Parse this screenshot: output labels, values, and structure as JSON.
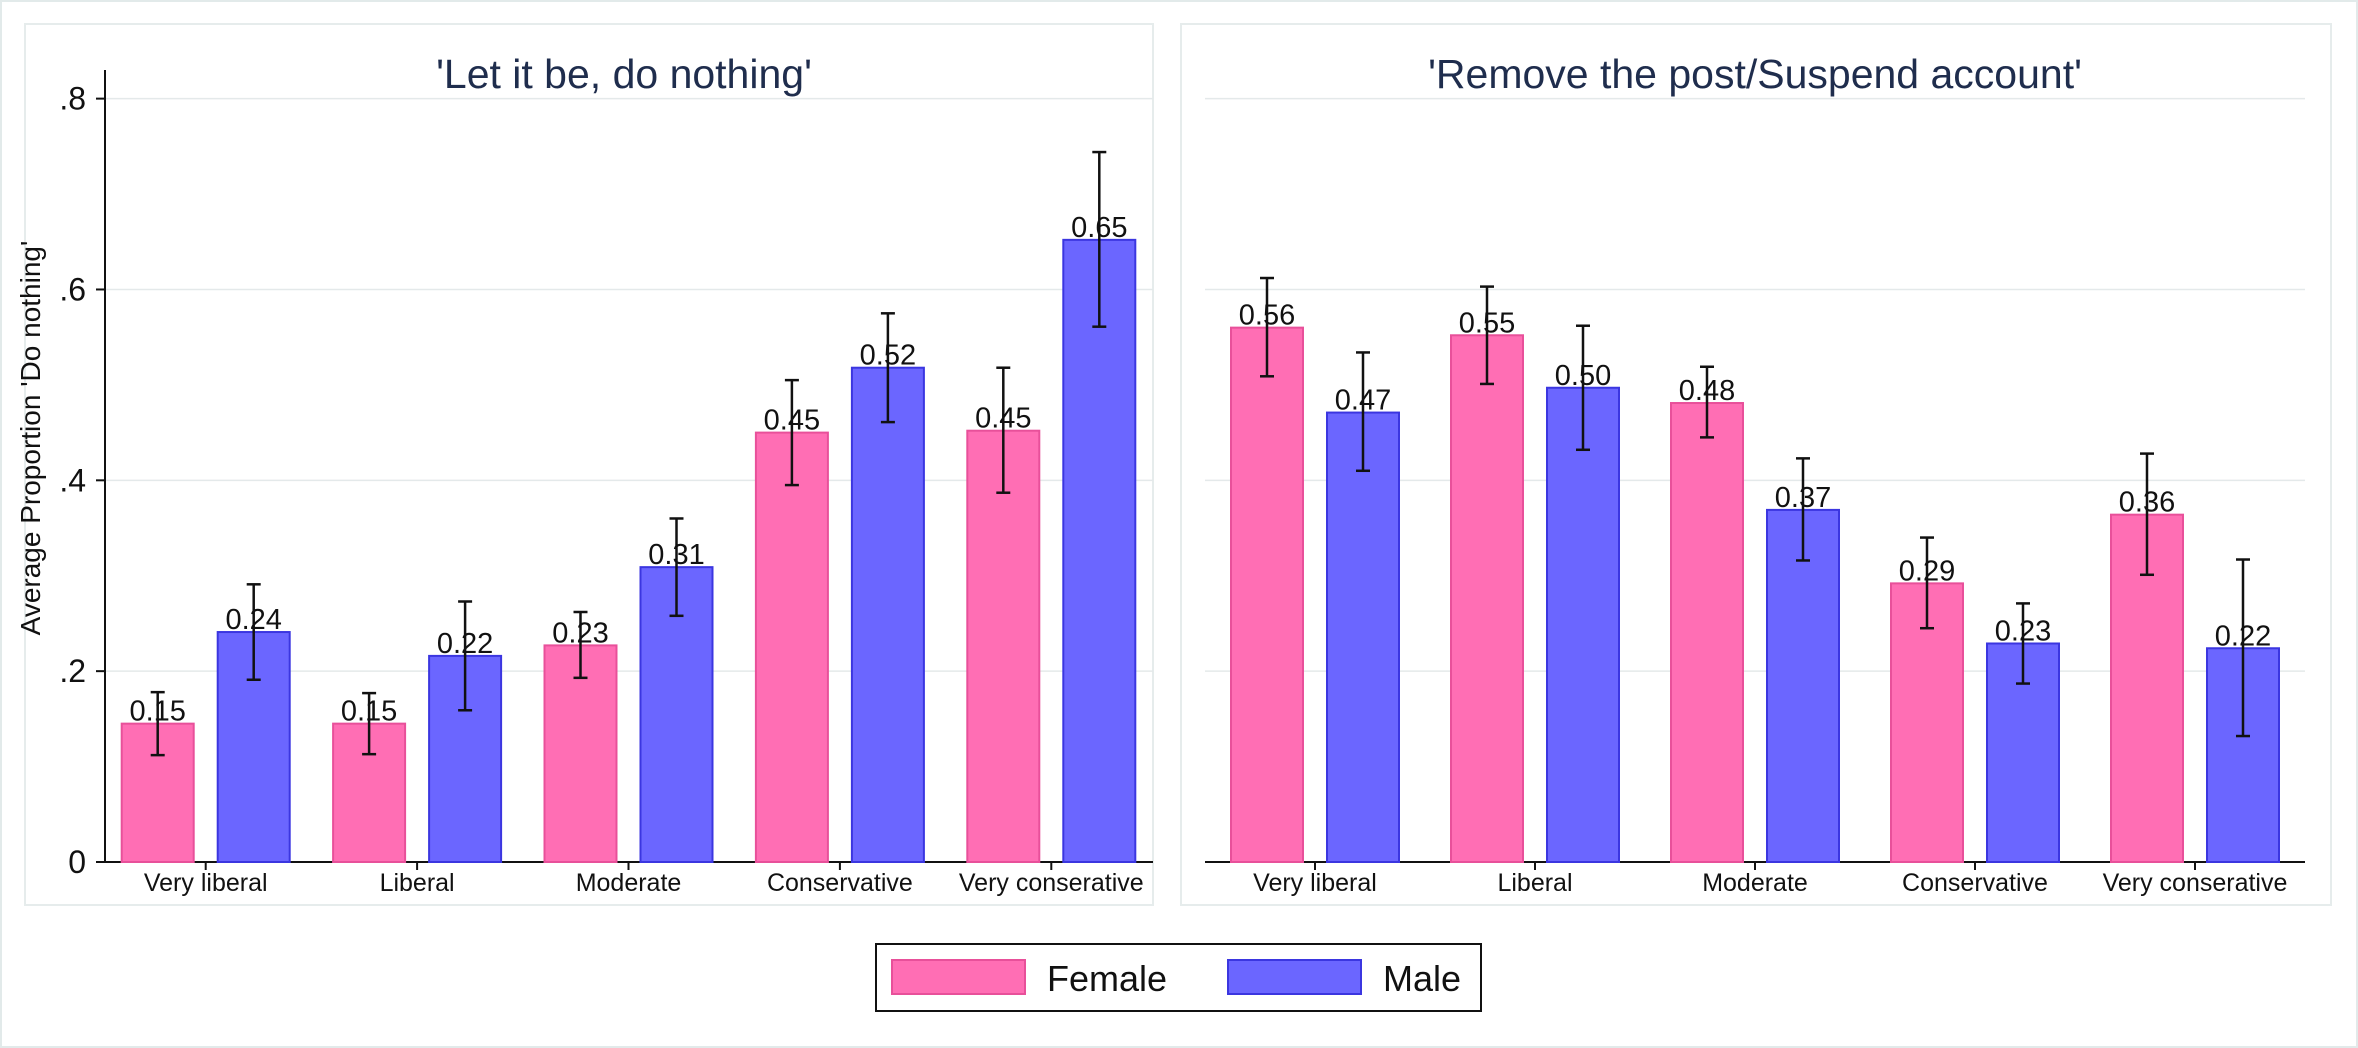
{
  "chart_data": {
    "type": "bar",
    "ylabel": "Average Proportion 'Do nothing'",
    "ylim": [
      0,
      0.83
    ],
    "yticks": [
      0,
      0.2,
      0.4,
      0.6,
      0.8
    ],
    "ytick_labels": [
      "0",
      ".2",
      ".4",
      ".6",
      ".8"
    ],
    "grid": true,
    "legend_position": "bottom",
    "categories": [
      "Very liberal",
      "Liberal",
      "Moderate",
      "Conservative",
      "Very conserative"
    ],
    "series_colors": {
      "Female": "#ff6eb4",
      "Male": "#6b66ff"
    },
    "series_edge_colors": {
      "Female": "#e8509a",
      "Male": "#3b36e0"
    },
    "panels": [
      {
        "title": "'Let it be, do nothing'",
        "series": [
          {
            "name": "Female",
            "values": [
              0.145,
              0.145,
              0.227,
              0.45,
              0.452
            ],
            "labels": [
              "0.15",
              "0.15",
              "0.23",
              "0.45",
              "0.45"
            ],
            "ci_low": [
              0.112,
              0.113,
              0.193,
              0.395,
              0.387
            ],
            "ci_high": [
              0.178,
              0.177,
              0.262,
              0.505,
              0.518
            ]
          },
          {
            "name": "Male",
            "values": [
              0.241,
              0.216,
              0.309,
              0.518,
              0.652
            ],
            "labels": [
              "0.24",
              "0.22",
              "0.31",
              "0.52",
              "0.65"
            ],
            "ci_low": [
              0.191,
              0.159,
              0.258,
              0.461,
              0.561
            ],
            "ci_high": [
              0.291,
              0.273,
              0.36,
              0.575,
              0.744
            ]
          }
        ]
      },
      {
        "title": "'Remove the post/Suspend account'",
        "series": [
          {
            "name": "Female",
            "values": [
              0.56,
              0.552,
              0.481,
              0.292,
              0.364
            ],
            "labels": [
              "0.56",
              "0.55",
              "0.48",
              "0.29",
              "0.36"
            ],
            "ci_low": [
              0.509,
              0.501,
              0.445,
              0.245,
              0.301
            ],
            "ci_high": [
              0.612,
              0.603,
              0.519,
              0.34,
              0.428
            ]
          },
          {
            "name": "Male",
            "values": [
              0.471,
              0.497,
              0.369,
              0.229,
              0.224
            ],
            "labels": [
              "0.47",
              "0.50",
              "0.37",
              "0.23",
              "0.22"
            ],
            "ci_low": [
              0.41,
              0.432,
              0.316,
              0.187,
              0.132
            ],
            "ci_high": [
              0.534,
              0.562,
              0.423,
              0.271,
              0.317
            ]
          }
        ]
      }
    ]
  },
  "legend": {
    "items": [
      "Female",
      "Male"
    ]
  }
}
